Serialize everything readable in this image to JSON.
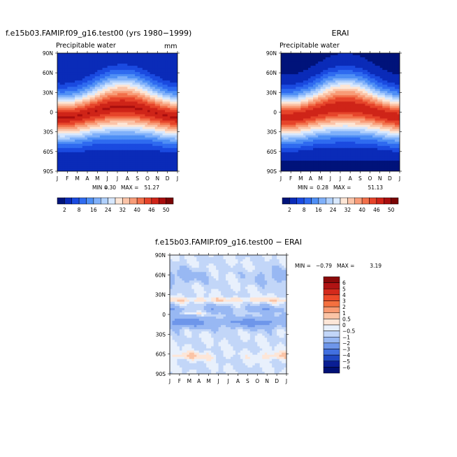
{
  "chart_data": [
    {
      "type": "heatmap",
      "title": "f.e15b03.FAMIP.f09_g16.test00 (yrs 1980−1999)",
      "subtitle": "Precipitable water",
      "units": "mm",
      "x": [
        "J",
        "F",
        "M",
        "A",
        "M",
        "J",
        "J",
        "A",
        "S",
        "O",
        "N",
        "D",
        "J"
      ],
      "y": [
        "90N",
        "60N",
        "30N",
        "0",
        "30S",
        "60S",
        "90S"
      ],
      "min": "0.30",
      "max": "51.27",
      "min_label": "MIN =",
      "max_label": "MAX =",
      "colorbar": {
        "labels": [
          "2",
          "8",
          "16",
          "24",
          "32",
          "40",
          "46",
          "50"
        ],
        "colors": [
          "#00137a",
          "#0a2bb8",
          "#1a4ae0",
          "#2f6bf0",
          "#4f8ff5",
          "#7fb0fa",
          "#b0d0fc",
          "#d8e8fe",
          "#fde6d6",
          "#fbc4a8",
          "#f89c78",
          "#f2704a",
          "#e6442a",
          "#cf2418",
          "#a80e0e",
          "#7a0505"
        ]
      }
    },
    {
      "type": "heatmap",
      "title": "ERAI",
      "subtitle": "Precipitable water",
      "x": [
        "J",
        "F",
        "M",
        "A",
        "M",
        "J",
        "J",
        "A",
        "S",
        "O",
        "N",
        "D",
        "J"
      ],
      "y": [
        "90N",
        "60N",
        "30N",
        "0",
        "30S",
        "60S",
        "90S"
      ],
      "min": "0.28",
      "max": "51.13",
      "min_label": "MIN =",
      "max_label": "MAX =",
      "colorbar": {
        "labels": [
          "2",
          "8",
          "16",
          "24",
          "32",
          "40",
          "46",
          "50"
        ]
      }
    },
    {
      "type": "heatmap",
      "title": "f.e15b03.FAMIP.f09_g16.test00 − ERAI",
      "x": [
        "J",
        "F",
        "M",
        "A",
        "M",
        "J",
        "J",
        "A",
        "S",
        "O",
        "N",
        "D",
        "J"
      ],
      "y": [
        "90N",
        "60N",
        "30N",
        "0",
        "30S",
        "60S",
        "90S"
      ],
      "min": "−0.79",
      "max": "3.19",
      "min_label": "MIN =",
      "max_label": "MAX =",
      "colorbar": {
        "labels": [
          "6",
          "5",
          "4",
          "3",
          "2",
          "1",
          "0.5",
          "0",
          "−0.5",
          "−1",
          "−2",
          "−3",
          "−4",
          "−5",
          "−6"
        ],
        "colors": [
          "#8a0a0a",
          "#b01414",
          "#d42a1c",
          "#ec4a2a",
          "#f4703f",
          "#f89a72",
          "#fbc4a6",
          "#fde6d8",
          "#e8f0fc",
          "#c2d6f8",
          "#98b8f3",
          "#6e96ea",
          "#4270e0",
          "#2048c4",
          "#0a1e94",
          "#001075"
        ]
      }
    }
  ]
}
